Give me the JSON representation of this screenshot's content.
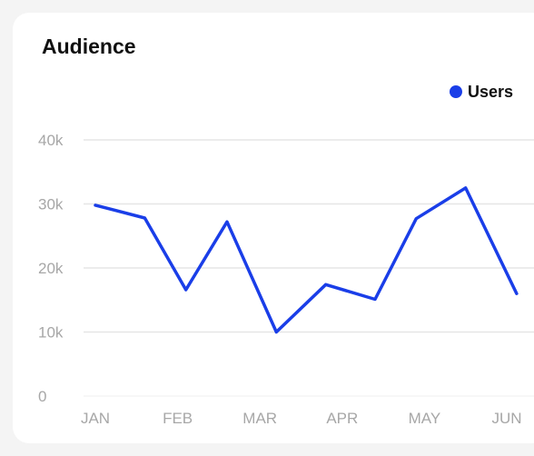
{
  "card": {
    "title": "Audience"
  },
  "colors": {
    "series": "#1a3ee8",
    "grid": "#e6e6e6",
    "tick_text": "#a7a7a7",
    "card_bg": "#ffffff",
    "page_bg": "#f4f4f4"
  },
  "chart_data": {
    "type": "line",
    "title": "Audience",
    "xlabel": "",
    "ylabel": "",
    "x_tick_labels": [
      "JAN",
      "FEB",
      "MAR",
      "APR",
      "MAY",
      "JUN"
    ],
    "y_tick_labels": [
      "0",
      "10k",
      "20k",
      "30k",
      "40k"
    ],
    "y_ticks": [
      0,
      10000,
      20000,
      30000,
      40000
    ],
    "ylim": [
      0,
      40000
    ],
    "xlim": [
      0,
      6.12
    ],
    "grid": "horizontal",
    "legend_position": "top-right",
    "series": [
      {
        "name": "Users",
        "points": [
          {
            "x": 0.0,
            "y": 29800
          },
          {
            "x": 0.6,
            "y": 27800
          },
          {
            "x": 1.1,
            "y": 16600
          },
          {
            "x": 1.6,
            "y": 27200
          },
          {
            "x": 2.2,
            "y": 10000
          },
          {
            "x": 2.8,
            "y": 17400
          },
          {
            "x": 3.4,
            "y": 15100
          },
          {
            "x": 3.9,
            "y": 27700
          },
          {
            "x": 4.5,
            "y": 32500
          },
          {
            "x": 5.12,
            "y": 16000
          }
        ]
      }
    ]
  }
}
